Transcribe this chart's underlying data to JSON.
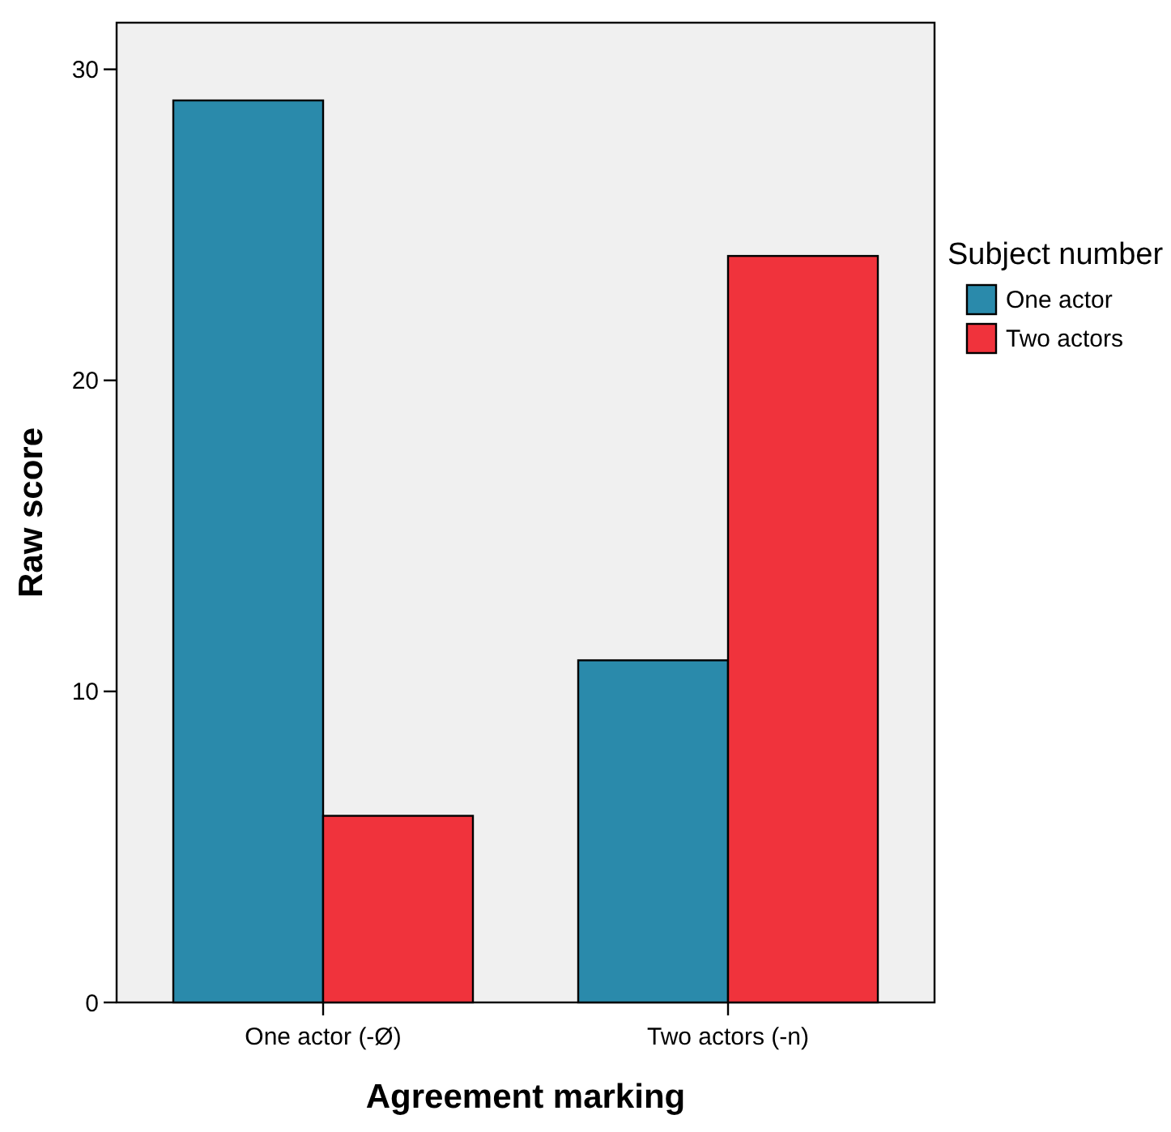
{
  "chart_data": {
    "type": "bar",
    "xlabel": "Agreement marking",
    "ylabel": "Raw score",
    "legend_title": "Subject number",
    "legend": "right",
    "categories": [
      "One actor (-Ø)",
      "Two actors (-n)"
    ],
    "series": [
      {
        "name": "One actor",
        "color": "#2a8aab",
        "values": [
          29,
          11
        ]
      },
      {
        "name": "Two actors",
        "color": "#f0333c",
        "values": [
          6,
          24
        ]
      }
    ],
    "ylim": [
      0,
      31.5
    ],
    "yticks": [
      0,
      10,
      20,
      30
    ],
    "grid": false
  }
}
